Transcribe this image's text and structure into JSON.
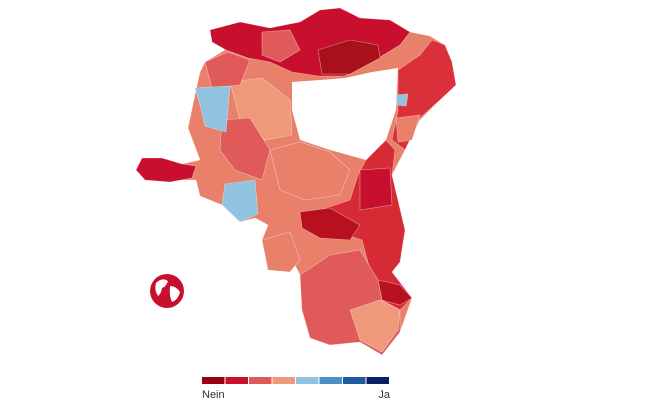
{
  "legend": {
    "low_label": "Nein",
    "high_label": "Ja",
    "colors": [
      "#99000d",
      "#c8102e",
      "#e05a5a",
      "#f0987a",
      "#8fc3e0",
      "#4a90c4",
      "#1f5a9e",
      "#0b1f66"
    ]
  }
}
